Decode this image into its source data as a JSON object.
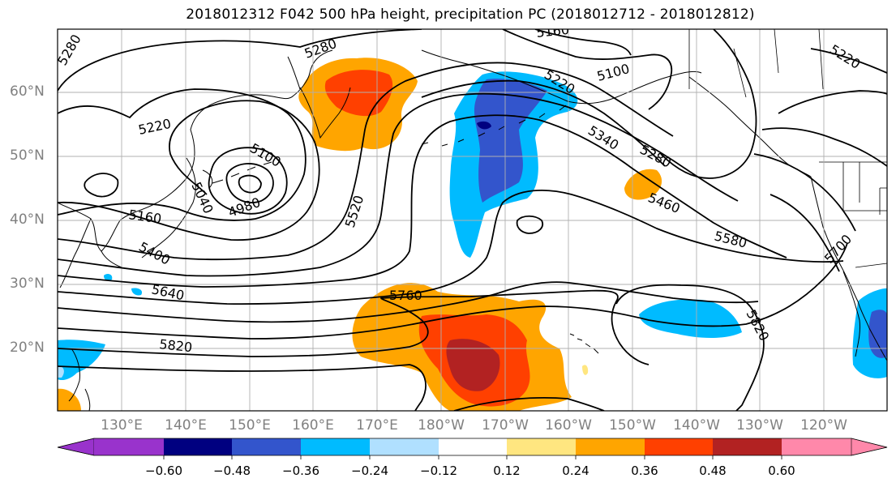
{
  "title": "2018012312 F042 500 hPa height, precipitation PC (2018012712 - 2018012812)",
  "map": {
    "lat_labels": [
      "60°N",
      "50°N",
      "40°N",
      "30°N",
      "20°N"
    ],
    "lon_labels": [
      "130°E",
      "140°E",
      "150°E",
      "160°E",
      "170°E",
      "180°W",
      "170°W",
      "160°W",
      "150°W",
      "140°W",
      "130°W",
      "120°W"
    ],
    "contour_labels": [
      "5280",
      "5280",
      "5220",
      "5100",
      "5040",
      "4980",
      "5160",
      "5400",
      "5640",
      "5820",
      "5520",
      "5760",
      "5160",
      "5220",
      "5100",
      "5340",
      "5280",
      "5460",
      "5580",
      "5700",
      "5820",
      "5220"
    ],
    "colors": {
      "land_outline": "#000000",
      "contour": "#000000",
      "grid": "#b0b0b0"
    }
  },
  "colorbar": {
    "tick_labels": [
      "−0.60",
      "−0.48",
      "−0.36",
      "−0.24",
      "−0.12",
      "0.12",
      "0.24",
      "0.36",
      "0.48",
      "0.60"
    ],
    "colors": [
      "#9933cc",
      "#000080",
      "#3355cc",
      "#00bbff",
      "#b0e0ff",
      "#ffffff",
      "#ffe680",
      "#ffa500",
      "#ff4000",
      "#b22222",
      "#ff88aa"
    ]
  }
}
